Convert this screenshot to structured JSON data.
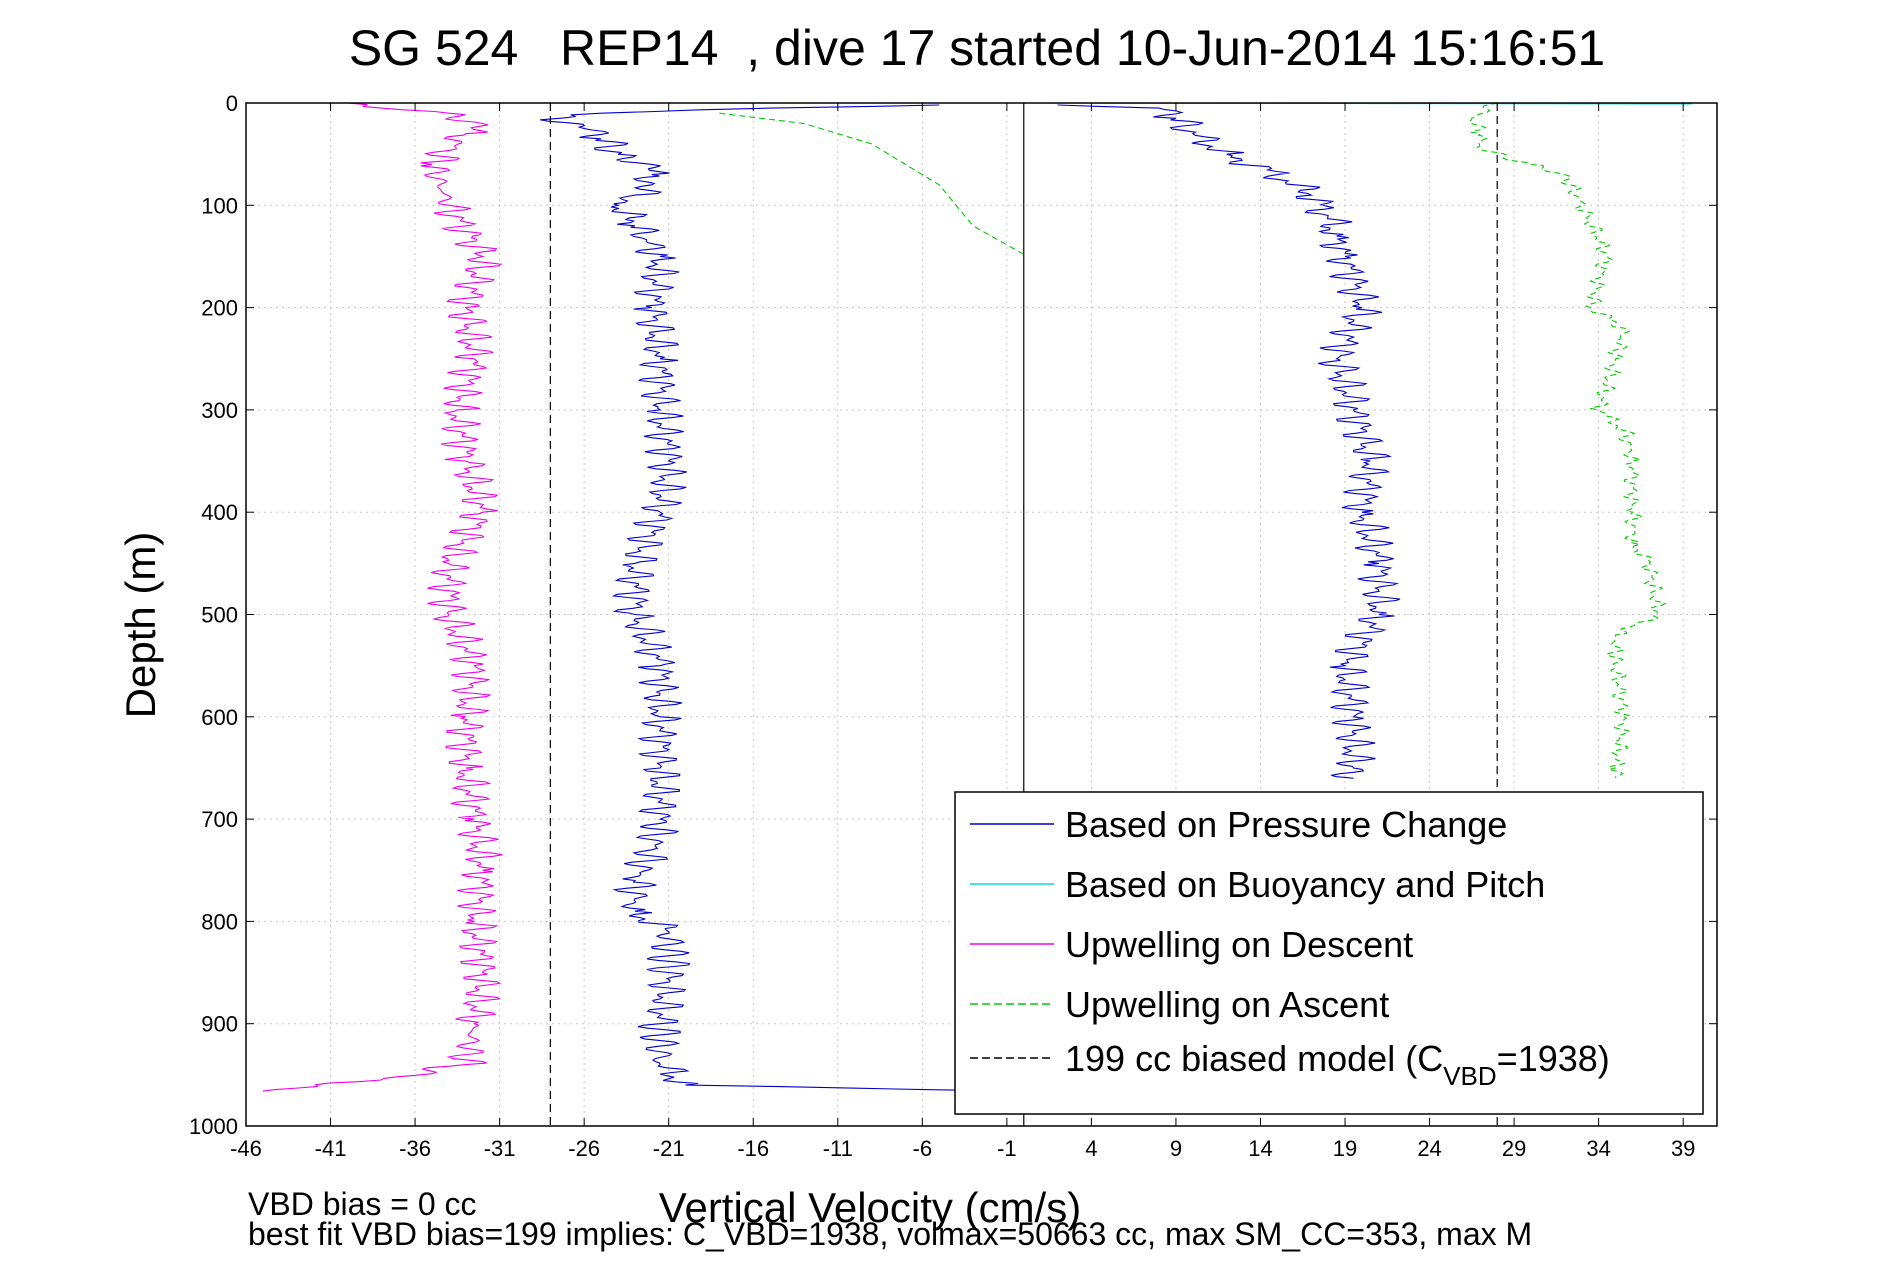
{
  "chart_data": {
    "type": "line",
    "title": "SG 524   REP14  , dive 17 started 10-Jun-2014 15:16:51",
    "xlabel": "Vertical Velocity (cm/s)",
    "ylabel": "Depth (m)",
    "xlim": [
      -46,
      41
    ],
    "ylim": [
      0,
      1000
    ],
    "y_reversed": true,
    "grid": true,
    "x_ticks": [
      "-46",
      "-41",
      "-36",
      "-31",
      "-26",
      "-21",
      "-16",
      "-11",
      "-6",
      "-1",
      "4",
      "9",
      "14",
      "19",
      "24",
      "29",
      "34",
      "39"
    ],
    "y_ticks": [
      "0",
      "100",
      "200",
      "300",
      "400",
      "500",
      "600",
      "700",
      "800",
      "900",
      "1000"
    ],
    "legend_position": "bottom-right",
    "series": [
      {
        "name": "Based on Pressure Change",
        "color": "#0000cc",
        "style": "solid",
        "segments": [
          {
            "depth": [
              2,
              5,
              10,
              18,
              25,
              35,
              50,
              60,
              70,
              80,
              90,
              100,
              120,
              150,
              200,
              250,
              300,
              350,
              400,
              450,
              500,
              550,
              600,
              650,
              700,
              730,
              760,
              790,
              810,
              850,
              900,
              940,
              960,
              966
            ],
            "velocity": [
              -5,
              -15,
              -25,
              -28,
              -26,
              -25,
              -24,
              -22,
              -22,
              -22,
              -23,
              -24,
              -23,
              -21.5,
              -22,
              -21.5,
              -21.5,
              -21,
              -21.5,
              -23,
              -23,
              -21.5,
              -21.5,
              -21.5,
              -21.5,
              -22,
              -23,
              -23,
              -21,
              -21,
              -21.5,
              -21.5,
              -20,
              0
            ]
          },
          {
            "depth": [
              2,
              5,
              15,
              30,
              50,
              70,
              90,
              110,
              130,
              150,
              200,
              250,
              300,
              350,
              400,
              450,
              500,
              550,
              600,
              650,
              660
            ],
            "velocity": [
              2,
              8,
              9,
              10,
              12,
              15,
              17,
              18,
              18.5,
              19,
              20,
              18.5,
              19.5,
              20.5,
              20,
              21,
              21,
              19,
              19.5,
              19.5,
              19.5
            ]
          }
        ]
      },
      {
        "name": "Based on Buoyancy and Pitch",
        "color": "#00dddd",
        "style": "solid",
        "segments": [
          {
            "depth": [
              0,
              1
            ],
            "velocity": [
              0,
              39.5
            ]
          },
          {
            "depth": [
              966,
              966
            ],
            "velocity": [
              36,
              39.5
            ]
          }
        ]
      },
      {
        "name": "Upwelling on Descent",
        "color": "#ee00ee",
        "style": "solid",
        "segments": [
          {
            "depth": [
              0,
              5,
              10,
              20,
              30,
              60,
              100,
              150,
              200,
              250,
              300,
              350,
              400,
              450,
              500,
              550,
              600,
              650,
              700,
              750,
              800,
              850,
              900,
              940,
              955,
              966
            ],
            "velocity": [
              -40,
              -38,
              -34,
              -32,
              -33,
              -35,
              -34,
              -32,
              -33,
              -32.5,
              -33.5,
              -33,
              -32,
              -34,
              -34,
              -32.5,
              -33,
              -33,
              -32.5,
              -32,
              -32.5,
              -32,
              -32.5,
              -33,
              -38,
              -45
            ]
          }
        ]
      },
      {
        "name": "Upwelling on Ascent",
        "color": "#00cc00",
        "style": "dashed",
        "segments": [
          {
            "depth": [
              10,
              20,
              40,
              60,
              80,
              100,
              120,
              148
            ],
            "velocity": [
              -18,
              -13,
              -9,
              -7,
              -5,
              -4,
              -3,
              0
            ]
          },
          {
            "depth": [
              0,
              15,
              30,
              45,
              60,
              70,
              100,
              150,
              200,
              220,
              250,
              300,
              320,
              350,
              400,
              430,
              450,
              500,
              520,
              550,
              600,
              650,
              660
            ],
            "velocity": [
              28,
              26.5,
              27,
              27,
              30,
              32,
              33,
              34.5,
              33.5,
              35.5,
              35,
              34,
              35.5,
              36,
              36,
              36,
              37,
              37.5,
              35,
              35,
              35.5,
              35,
              35
            ]
          }
        ]
      },
      {
        "name": "199 cc biased model (C",
        "subscript": "VBD",
        "name_suffix": "=1938)",
        "color": "#000000",
        "style": "dashed",
        "vertical_lines_at_velocity": [
          -28,
          28
        ]
      }
    ],
    "reference_lines": [
      {
        "velocity": 0,
        "style": "solid",
        "color": "#000000"
      }
    ]
  },
  "footer": {
    "line1": "VBD bias = 0 cc",
    "line2": "best fit VBD bias=199 implies: C_VBD=1938, volmax=50663 cc, max SM_CC=353, max M"
  }
}
